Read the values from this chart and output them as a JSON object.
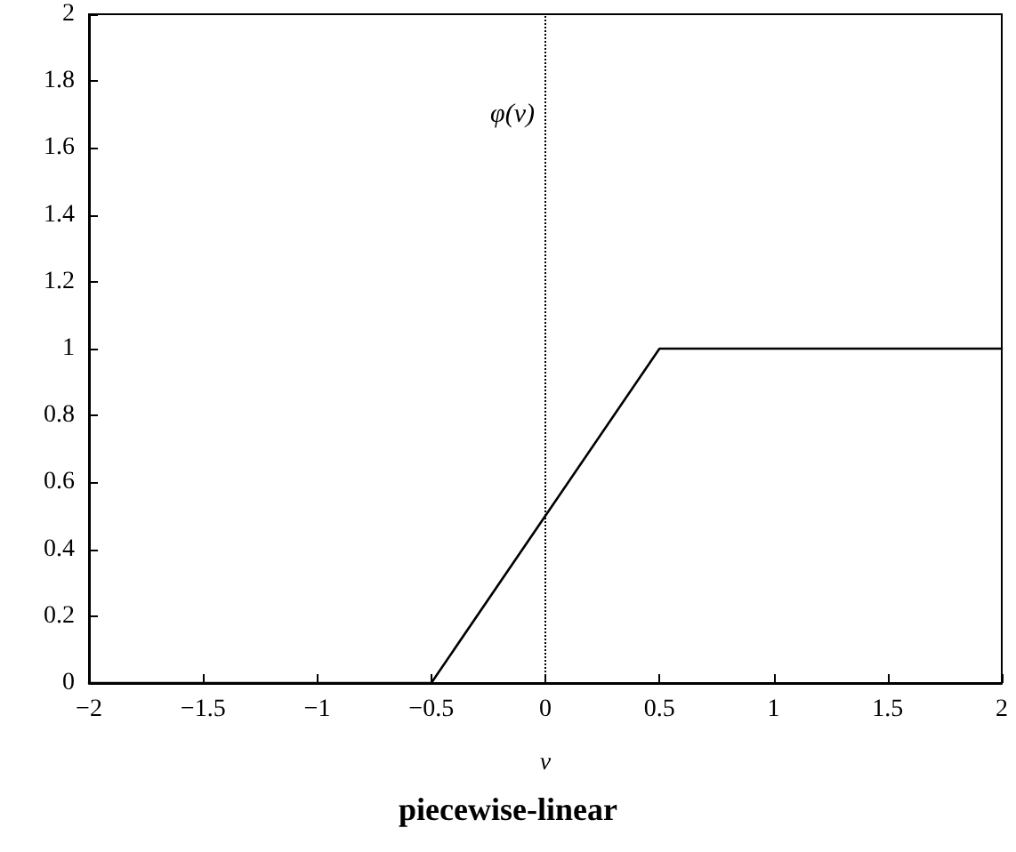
{
  "chart_data": {
    "type": "line",
    "title": "piecewise-linear",
    "xlabel": "v",
    "x": [
      -2,
      -0.5,
      0.5,
      2
    ],
    "series": [
      {
        "color": "#000000",
        "values": [
          0,
          0,
          1,
          1
        ]
      }
    ],
    "xlim": [
      -2,
      2
    ],
    "xticks": [
      -2,
      -1.5,
      -1,
      -0.5,
      0,
      0.5,
      1,
      1.5,
      2
    ],
    "ylim": [
      0,
      2
    ],
    "yticks": [
      0,
      0.2,
      0.4,
      0.6,
      0.8,
      1,
      1.2,
      1.4,
      1.6,
      1.8,
      2
    ],
    "ref_lines": [
      {
        "axis": "x",
        "value": 0,
        "color": "#000000",
        "line_style": "dotted"
      }
    ],
    "annotations": [
      {
        "text": "φ(v)",
        "x": 0,
        "y": 1.7
      }
    ],
    "grid": false,
    "marker": "none",
    "line_style": "solid"
  }
}
